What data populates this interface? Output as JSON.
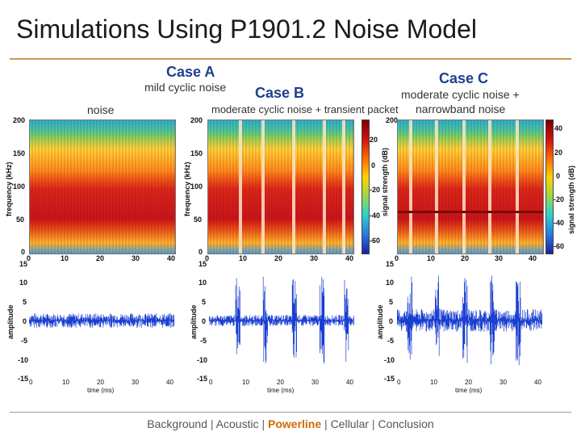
{
  "slide": {
    "title": "Simulations Using P1901.2 Noise Model"
  },
  "cases": {
    "a": {
      "heading": "Case A",
      "desc": "mild cyclic noise"
    },
    "b": {
      "heading": "Case B",
      "desc_left": "noise",
      "desc_overlap": "moderate cyclic noise + transient packet"
    },
    "c": {
      "heading": "Case C",
      "desc_line1": "moderate cyclic noise +",
      "desc_line2": "narrowband noise"
    }
  },
  "axes": {
    "spec_y_label": "frequency (kHz)",
    "spec_y_ticks": [
      "200",
      "150",
      "100",
      "50",
      "0"
    ],
    "spec_x_ticks": [
      "0",
      "10",
      "20",
      "30",
      "40"
    ],
    "wave_y_label": "amplitude",
    "wave_y_ticks": [
      "15",
      "10",
      "5",
      "0",
      "-5",
      "-10",
      "-15"
    ],
    "wave_x_ticks": [
      "0",
      "10",
      "20",
      "30",
      "40"
    ],
    "wave_x_label": "time (ms)",
    "colorbar_b_label": "signal strength (dB)",
    "colorbar_b_ticks": [
      "20",
      "0",
      "-20",
      "-40",
      "-60"
    ],
    "colorbar_c_label": "signal strength (dB)",
    "colorbar_c_ticks": [
      "40",
      "20",
      "0",
      "-20",
      "-40",
      "-60"
    ]
  },
  "footer": {
    "items": [
      "Background",
      "Acoustic",
      "Powerline",
      "Cellular",
      "Conclusion"
    ],
    "separator": "|",
    "active": "Powerline"
  },
  "colors": {
    "title": "#1a1a1a",
    "heading": "#1f3f8f",
    "rule": "#c99a55",
    "footer_active": "#d06a00",
    "waveform": "#1a3fd0"
  }
}
